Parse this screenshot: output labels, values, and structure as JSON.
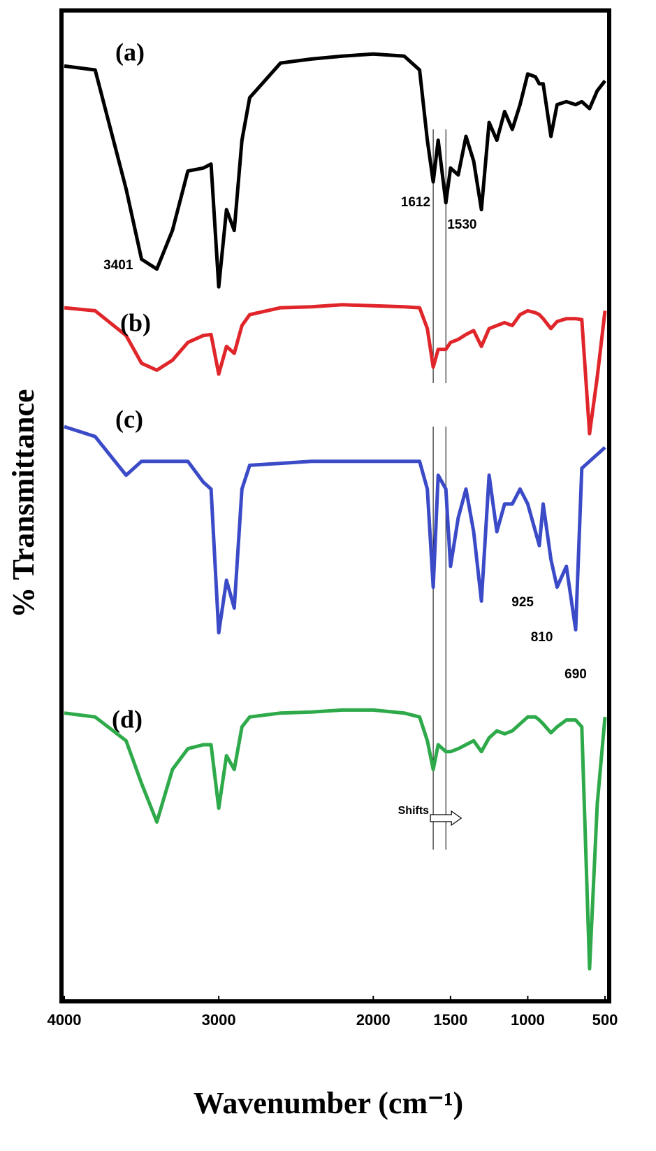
{
  "chart_data": {
    "type": "line",
    "x_label": "Wavenumber (cm⁻¹)",
    "y_label": "% Transmittance",
    "x": [
      4000,
      3800,
      3600,
      3500,
      3401,
      3300,
      3200,
      3100,
      3050,
      3000,
      2950,
      2900,
      2850,
      2800,
      2600,
      2400,
      2200,
      2000,
      1800,
      1700,
      1650,
      1612,
      1580,
      1530,
      1500,
      1450,
      1400,
      1350,
      1300,
      1250,
      1200,
      1150,
      1100,
      1050,
      1000,
      950,
      925,
      900,
      850,
      810,
      750,
      690,
      650,
      600,
      550,
      500
    ],
    "series": [
      {
        "name": "(a)",
        "color": "#000000",
        "values": [
          94.4,
          94.0,
          82.0,
          74.9,
          73.9,
          77.8,
          83.8,
          84.1,
          84.5,
          72.1,
          79.9,
          77.8,
          86.9,
          91.2,
          94.7,
          95.1,
          95.4,
          95.6,
          95.4,
          94.0,
          86.9,
          82.7,
          86.9,
          80.6,
          84.1,
          83.4,
          87.3,
          84.8,
          79.9,
          88.7,
          86.9,
          89.8,
          88.0,
          90.5,
          93.6,
          93.3,
          92.6,
          92.6,
          87.3,
          90.5,
          90.8,
          90.5,
          90.8,
          90.1,
          91.9,
          92.9
        ]
      },
      {
        "name": "(b)",
        "color": "#e0262a",
        "values": [
          70.0,
          69.7,
          67.2,
          64.4,
          63.7,
          64.7,
          66.5,
          67.2,
          67.3,
          63.3,
          66.1,
          65.4,
          68.2,
          69.3,
          70.0,
          70.1,
          70.3,
          70.2,
          70.1,
          70.0,
          67.9,
          64.0,
          65.8,
          65.8,
          66.5,
          66.8,
          67.3,
          67.7,
          66.1,
          67.9,
          68.2,
          68.5,
          68.2,
          69.3,
          69.7,
          69.5,
          69.3,
          68.9,
          67.9,
          68.6,
          68.9,
          68.9,
          68.8,
          57.3,
          63.0,
          69.7
        ]
      },
      {
        "name": "(c)",
        "color": "#3b4bc8",
        "values": [
          58.0,
          57.0,
          53.1,
          54.5,
          54.5,
          54.5,
          54.5,
          52.4,
          51.7,
          37.2,
          42.5,
          39.7,
          51.7,
          54.1,
          54.3,
          54.5,
          54.5,
          54.5,
          54.5,
          54.5,
          51.7,
          41.8,
          53.1,
          51.7,
          43.9,
          48.8,
          51.7,
          47.4,
          40.4,
          53.1,
          47.4,
          50.2,
          50.2,
          51.7,
          50.2,
          47.4,
          46.0,
          50.2,
          44.6,
          41.8,
          43.9,
          37.5,
          53.8,
          54.5,
          55.2,
          55.9
        ]
      },
      {
        "name": "(d)",
        "color": "#2eaa4a",
        "values": [
          29.1,
          28.7,
          26.3,
          22.0,
          18.1,
          23.4,
          25.5,
          25.9,
          25.9,
          19.5,
          24.8,
          23.4,
          27.7,
          28.7,
          29.1,
          29.2,
          29.4,
          29.4,
          29.1,
          28.7,
          26.3,
          23.4,
          25.9,
          25.2,
          25.2,
          25.5,
          25.9,
          26.3,
          25.2,
          26.6,
          27.3,
          27.0,
          27.3,
          28.0,
          28.7,
          28.7,
          28.4,
          28.0,
          27.1,
          27.7,
          28.4,
          28.4,
          27.7,
          3.3,
          19.9,
          28.7
        ]
      }
    ],
    "peaks": [
      3401,
      1612,
      1530,
      925,
      810,
      690
    ],
    "annotation": "Shifts",
    "xlim": [
      4000,
      500
    ],
    "xticks": [
      4000,
      3000,
      2000,
      1500,
      1000,
      500
    ],
    "ylim": [
      0,
      100
    ]
  }
}
